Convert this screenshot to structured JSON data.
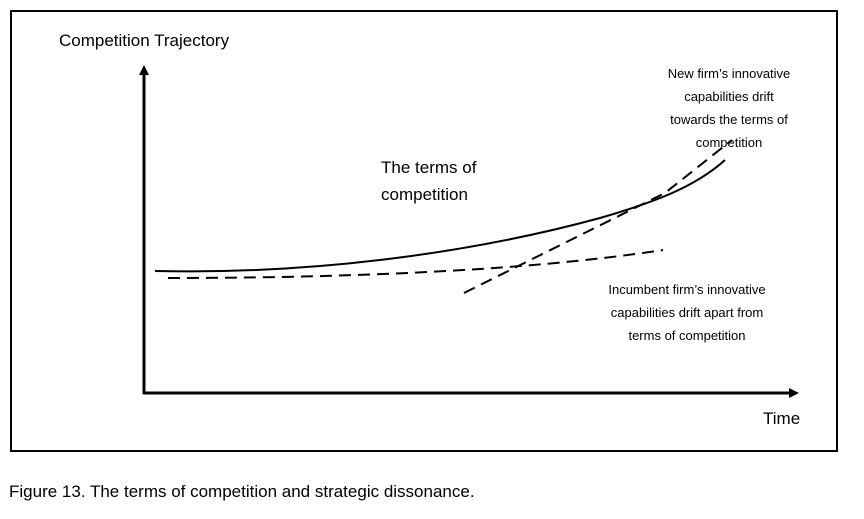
{
  "axes": {
    "y_label": "Competition Trajectory",
    "x_label": "Time"
  },
  "curves": {
    "terms_of_competition": {
      "label_lines": [
        "The terms of",
        "competition"
      ],
      "style": "solid"
    },
    "new_firm": {
      "label_lines": [
        "New firm’s innovative",
        "capabilities drift",
        "towards the terms of",
        "competition"
      ],
      "style": "dashed"
    },
    "incumbent_firm": {
      "label_lines": [
        "Incumbent firm’s innovative",
        "capabilities drift apart from",
        "terms of competition"
      ],
      "style": "dashed"
    }
  },
  "caption": "Figure 13. The terms of competition and strategic dissonance.",
  "colors": {
    "ink": "#000000",
    "background": "#ffffff"
  }
}
